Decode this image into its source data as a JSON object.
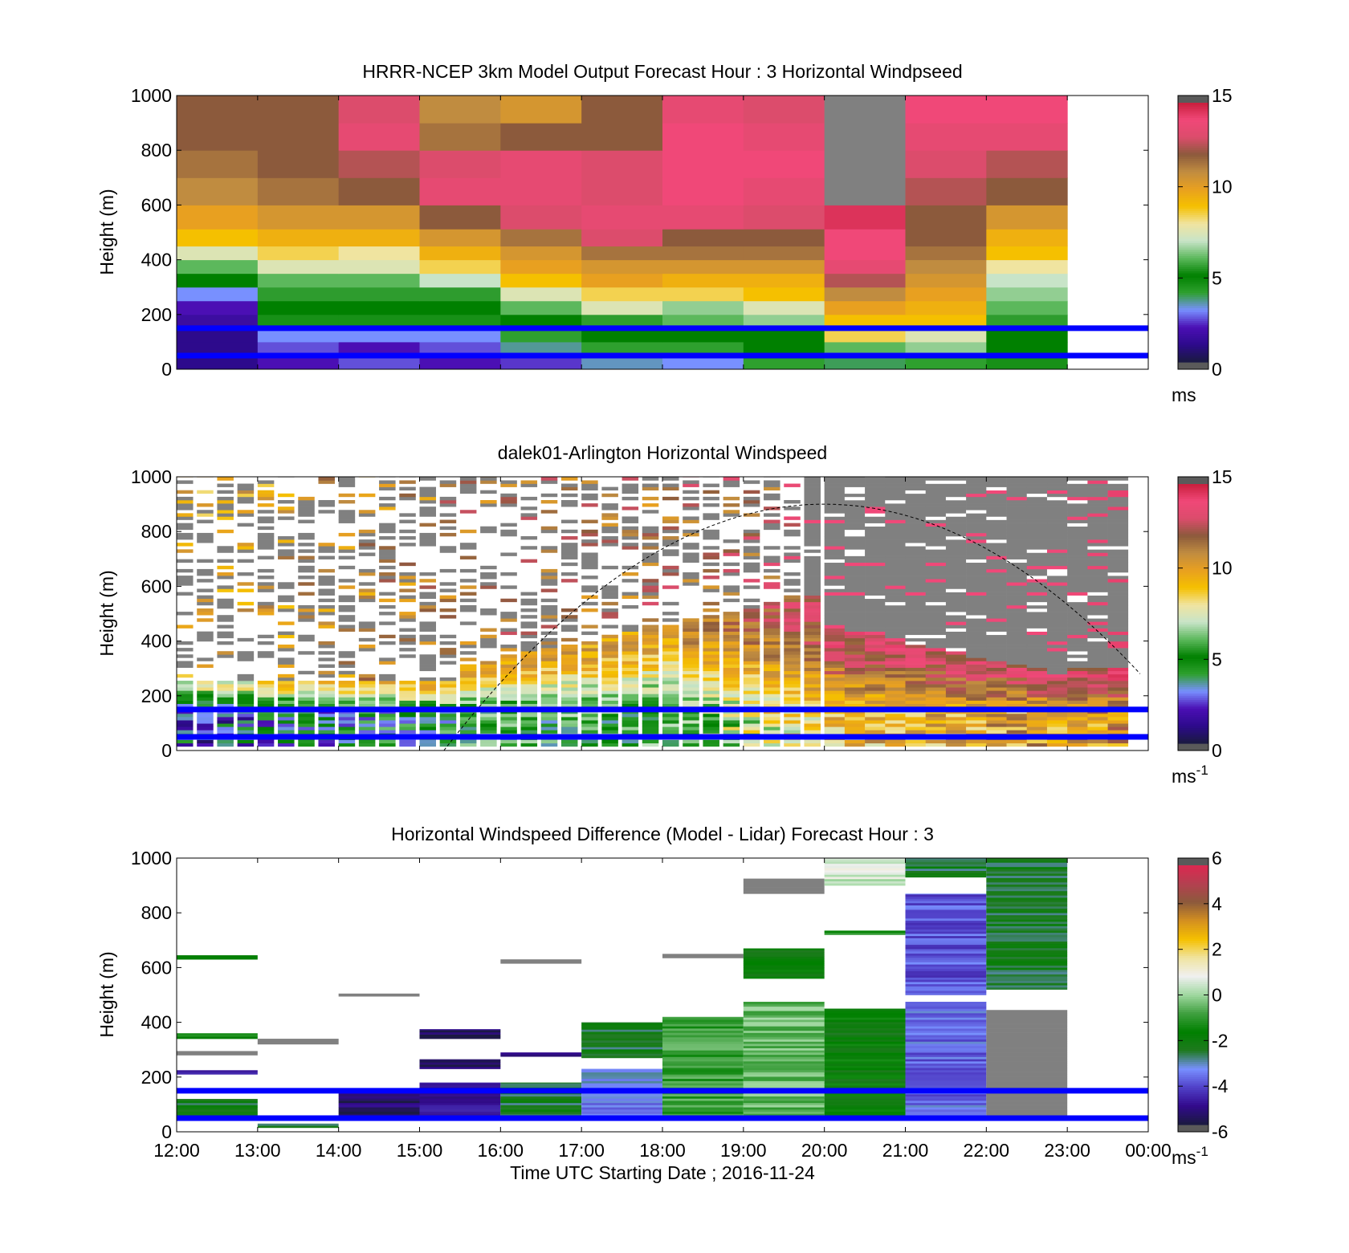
{
  "x_tick_labels": [
    "12:00",
    "13:00",
    "14:00",
    "15:00",
    "16:00",
    "17:00",
    "18:00",
    "19:00",
    "20:00",
    "21:00",
    "22:00",
    "23:00",
    "00:00"
  ],
  "x_axis_label": "Time UTC  Starting Date ; 2016-11-24",
  "line_color": "#0000ff",
  "reference_heights_m": [
    150,
    50
  ],
  "panels": [
    {
      "id": "model",
      "title": "HRRR-NCEP 3km Model Output   Forecast Hour : 3 Horizontal Windpseed",
      "ylabel": "Height (m)",
      "y_ticks": [
        "0",
        "200",
        "400",
        "600",
        "800",
        "1000"
      ],
      "colorbar_ticks": [
        "0",
        "5",
        "10",
        "15"
      ],
      "colorbar_unit": "ms",
      "colorbar_unit_sup": "",
      "show_x_tick_labels": false
    },
    {
      "id": "lidar",
      "title": "dalek01-Arlington  Horizontal Windspeed",
      "ylabel": "Height (m)",
      "y_ticks": [
        "0",
        "200",
        "400",
        "600",
        "800",
        "1000"
      ],
      "colorbar_ticks": [
        "0",
        "5",
        "10",
        "15"
      ],
      "colorbar_unit": "ms",
      "colorbar_unit_sup": "-1",
      "show_x_tick_labels": false
    },
    {
      "id": "diff",
      "title": "Horizontal Windspeed Difference (Model - Lidar) Forecast Hour : 3",
      "ylabel": "Height (m)",
      "y_ticks": [
        "0",
        "200",
        "400",
        "600",
        "800",
        "1000"
      ],
      "colorbar_ticks": [
        "-6",
        "-4",
        "-2",
        "0",
        "2",
        "4",
        "6"
      ],
      "colorbar_unit": "ms",
      "colorbar_unit_sup": "-1",
      "show_x_tick_labels": true
    }
  ],
  "chart_data": [
    {
      "type": "heatmap",
      "title": "HRRR-NCEP 3km Model Output   Forecast Hour : 3 Horizontal Windpseed",
      "xlabel": "",
      "ylabel": "Height (m)",
      "x_range_hours_utc": [
        12,
        24
      ],
      "ylim": [
        0,
        1000
      ],
      "clim": [
        0,
        15
      ],
      "colorbar_label": "ms",
      "colormap_stops": [
        "#5a5a5a",
        "#000033",
        "#3a0aa0",
        "#7088ff",
        "#008000",
        "#c8e6c8",
        "#f0c000",
        "#e8a020",
        "#8c5a3c",
        "#dc3c64",
        "#c80028",
        "#808080"
      ],
      "time_bins": [
        "12:00",
        "13:00",
        "14:00",
        "15:00",
        "16:00",
        "17:00",
        "18:00",
        "19:00",
        "20:00",
        "21:00",
        "22:00"
      ],
      "height_levels_m": [
        25,
        75,
        125,
        175,
        225,
        275,
        325,
        375,
        425,
        475,
        550,
        650,
        750,
        850,
        950
      ],
      "values_ms": [
        [
          1.0,
          2.0,
          2.5,
          2.0,
          2.3,
          3.3,
          3.0,
          4.0,
          3.8,
          4.0,
          4.5
        ],
        [
          1.0,
          2.5,
          2.0,
          2.5,
          3.5,
          4.0,
          4.0,
          5.0,
          6.0,
          6.5,
          5.0
        ],
        [
          1.0,
          3.0,
          3.0,
          3.0,
          4.0,
          5.0,
          5.0,
          5.0,
          8.5,
          7.5,
          5.0
        ],
        [
          1.5,
          4.5,
          4.5,
          4.5,
          5.0,
          5.5,
          6.0,
          6.5,
          9.0,
          9.0,
          5.5
        ],
        [
          2.0,
          5.0,
          5.0,
          5.0,
          6.0,
          7.5,
          6.5,
          7.5,
          10.0,
          9.5,
          6.0
        ],
        [
          3.0,
          5.5,
          5.5,
          5.5,
          7.5,
          8.5,
          8.5,
          9.0,
          11.0,
          10.0,
          6.5
        ],
        [
          5.0,
          6.0,
          6.0,
          7.0,
          9.0,
          10.0,
          9.5,
          9.5,
          12.5,
          10.5,
          7.0
        ],
        [
          6.0,
          7.5,
          7.5,
          8.5,
          10.0,
          10.5,
          10.5,
          10.5,
          13.5,
          11.0,
          8.0
        ],
        [
          7.5,
          8.5,
          8.0,
          9.5,
          10.5,
          11.5,
          11.5,
          11.5,
          14.0,
          11.5,
          9.0
        ],
        [
          9.0,
          9.5,
          9.5,
          10.5,
          11.5,
          13.0,
          12.0,
          12.0,
          14.0,
          12.0,
          9.5
        ],
        [
          10.0,
          10.5,
          10.5,
          12.0,
          13.0,
          13.5,
          13.5,
          13.0,
          14.5,
          12.0,
          10.5
        ],
        [
          11.0,
          11.5,
          12.0,
          13.5,
          13.5,
          13.0,
          14.0,
          13.5,
          15.0,
          12.5,
          12.0
        ],
        [
          11.5,
          12.0,
          12.5,
          13.0,
          13.5,
          13.0,
          14.0,
          14.0,
          15.0,
          13.0,
          12.5
        ],
        [
          12.0,
          12.0,
          13.5,
          11.5,
          12.0,
          12.0,
          14.0,
          13.5,
          15.0,
          13.5,
          13.5
        ],
        [
          12.0,
          12.0,
          13.0,
          11.0,
          10.5,
          12.0,
          13.5,
          13.0,
          15.0,
          14.0,
          14.0
        ]
      ]
    },
    {
      "type": "heatmap",
      "title": "dalek01-Arlington  Horizontal Windspeed",
      "xlabel": "",
      "ylabel": "Height (m)",
      "x_range_hours_utc": [
        12,
        24
      ],
      "ylim": [
        0,
        1000
      ],
      "clim": [
        0,
        15
      ],
      "colorbar_label": "ms-1",
      "description_profile_by_hour": [
        {
          "hour": "12:00",
          "low_m_s": 2,
          "mid_m_s": 7,
          "high_m_s": 11
        },
        {
          "hour": "14:00",
          "low_m_s": 4,
          "mid_m_s": 9,
          "high_m_s": 12
        },
        {
          "hour": "16:00",
          "low_m_s": 5,
          "mid_m_s": 10,
          "high_m_s": 13
        },
        {
          "hour": "18:00",
          "low_m_s": 5,
          "mid_m_s": 10,
          "high_m_s": 13
        },
        {
          "hour": "20:00",
          "low_m_s": 9,
          "mid_m_s": 13,
          "high_m_s": 14
        },
        {
          "hour": "22:00",
          "low_m_s": 10,
          "mid_m_s": 13,
          "high_m_s": 14
        },
        {
          "hour": "23:00",
          "low_m_s": 10,
          "mid_m_s": 13,
          "high_m_s": 14
        }
      ],
      "dashed_curve_peak_m": 900,
      "dashed_curve_peak_time": "20:00"
    },
    {
      "type": "heatmap",
      "title": "Horizontal Windspeed Difference (Model - Lidar) Forecast Hour : 3",
      "xlabel": "Time UTC  Starting Date ; 2016-11-24",
      "ylabel": "Height (m)",
      "x_range_hours_utc": [
        12,
        24
      ],
      "ylim": [
        0,
        1000
      ],
      "clim": [
        -6,
        6
      ],
      "colorbar_label": "ms-1",
      "segments": [
        {
          "hour": "12:00",
          "from_m": 630,
          "to_m": 645,
          "value": -1.5
        },
        {
          "hour": "12:00",
          "from_m": 340,
          "to_m": 360,
          "value": -1.5
        },
        {
          "hour": "12:00",
          "from_m": 280,
          "to_m": 295,
          "value": -6.5
        },
        {
          "hour": "12:00",
          "from_m": 210,
          "to_m": 225,
          "value": -5
        },
        {
          "hour": "12:00",
          "from_m": 50,
          "to_m": 120,
          "value": -2.5
        },
        {
          "hour": "13:00",
          "from_m": 320,
          "to_m": 340,
          "value": -6.5
        },
        {
          "hour": "13:00",
          "from_m": 15,
          "to_m": 30,
          "value": -2.5
        },
        {
          "hour": "14:00",
          "from_m": 495,
          "to_m": 505,
          "value": -6.5
        },
        {
          "hour": "14:00",
          "from_m": 50,
          "to_m": 150,
          "value": -5.5
        },
        {
          "hour": "15:00",
          "from_m": 340,
          "to_m": 375,
          "value": -5.5
        },
        {
          "hour": "15:00",
          "from_m": 230,
          "to_m": 265,
          "value": -5.5
        },
        {
          "hour": "15:00",
          "from_m": 50,
          "to_m": 180,
          "value": -5
        },
        {
          "hour": "16:00",
          "from_m": 615,
          "to_m": 630,
          "value": -6.5
        },
        {
          "hour": "16:00",
          "from_m": 275,
          "to_m": 290,
          "value": -5.5
        },
        {
          "hour": "16:00",
          "from_m": 50,
          "to_m": 180,
          "value": -2.5
        },
        {
          "hour": "17:00",
          "from_m": 270,
          "to_m": 400,
          "value": -2.5
        },
        {
          "hour": "17:00",
          "from_m": 50,
          "to_m": 230,
          "value": -3.5
        },
        {
          "hour": "18:00",
          "from_m": 635,
          "to_m": 650,
          "value": -6.5
        },
        {
          "hour": "18:00",
          "from_m": 50,
          "to_m": 420,
          "value": -1.0
        },
        {
          "hour": "19:00",
          "from_m": 870,
          "to_m": 925,
          "value": -6.5
        },
        {
          "hour": "19:00",
          "from_m": 560,
          "to_m": 670,
          "value": -2.0
        },
        {
          "hour": "19:00",
          "from_m": 50,
          "to_m": 475,
          "value": -0.5
        },
        {
          "hour": "20:00",
          "from_m": 900,
          "to_m": 1000,
          "value": 0.5
        },
        {
          "hour": "20:00",
          "from_m": 720,
          "to_m": 735,
          "value": -1.5
        },
        {
          "hour": "20:00",
          "from_m": 50,
          "to_m": 450,
          "value": -2.0
        },
        {
          "hour": "21:00",
          "from_m": 930,
          "to_m": 1000,
          "value": -2.5
        },
        {
          "hour": "21:00",
          "from_m": 500,
          "to_m": 870,
          "value": -4.0
        },
        {
          "hour": "21:00",
          "from_m": 50,
          "to_m": 475,
          "value": -3.8
        },
        {
          "hour": "22:00",
          "from_m": 520,
          "to_m": 1000,
          "value": -2.5
        },
        {
          "hour": "22:00",
          "from_m": 50,
          "to_m": 445,
          "value": -6.5
        }
      ]
    }
  ]
}
